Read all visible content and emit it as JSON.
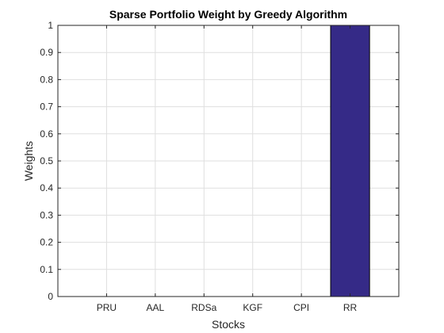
{
  "chart_data": {
    "type": "bar",
    "title": "Sparse Portfolio Weight by Greedy Algorithm",
    "xlabel": "Stocks",
    "ylabel": "Weights",
    "categories": [
      "PRU",
      "AAL",
      "RDSa",
      "KGF",
      "CPI",
      "RR"
    ],
    "values": [
      0,
      0,
      0,
      0,
      0,
      1
    ],
    "ylim": [
      0,
      1
    ],
    "yticks": [
      "0",
      "0.1",
      "0.2",
      "0.3",
      "0.4",
      "0.5",
      "0.6",
      "0.7",
      "0.8",
      "0.9",
      "1"
    ],
    "grid": true,
    "legend": "none",
    "colors": {
      "bar": "#352a87",
      "grid": "#dfdfdf",
      "axis": "#262626"
    }
  }
}
